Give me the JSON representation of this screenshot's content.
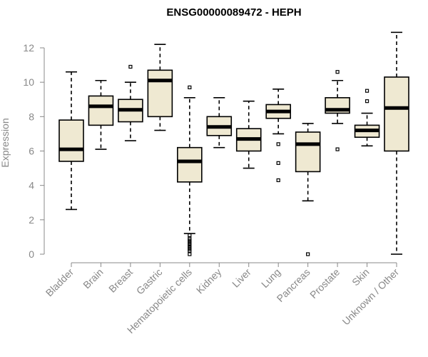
{
  "chart_data": {
    "type": "boxplot",
    "title": "ENSG00000089472 - HEPH",
    "xlabel": "",
    "ylabel": "Expression",
    "ylim": [
      0,
      12.5
    ],
    "yticks": [
      0,
      2,
      4,
      6,
      8,
      10,
      12
    ],
    "categories": [
      "Bladder",
      "Brain",
      "Breast",
      "Gastric",
      "Hematopoietic cells",
      "Kidney",
      "Liver",
      "Lung",
      "Pancreas",
      "Prostate",
      "Skin",
      "Unknown / Other"
    ],
    "boxes": [
      {
        "name": "Bladder",
        "whisker_low": 2.6,
        "q1": 5.4,
        "median": 6.1,
        "q3": 7.8,
        "whisker_high": 10.6,
        "outliers": []
      },
      {
        "name": "Brain",
        "whisker_low": 6.1,
        "q1": 7.5,
        "median": 8.6,
        "q3": 9.2,
        "whisker_high": 10.1,
        "outliers": []
      },
      {
        "name": "Breast",
        "whisker_low": 6.6,
        "q1": 7.7,
        "median": 8.4,
        "q3": 9.0,
        "whisker_high": 10.0,
        "outliers": [
          10.9
        ]
      },
      {
        "name": "Gastric",
        "whisker_low": 7.2,
        "q1": 8.0,
        "median": 10.1,
        "q3": 10.7,
        "whisker_high": 12.2,
        "outliers": []
      },
      {
        "name": "Hematopoietic cells",
        "whisker_low": 1.2,
        "q1": 4.2,
        "median": 5.4,
        "q3": 6.2,
        "whisker_high": 9.1,
        "outliers": [
          9.7,
          1.1,
          0.9,
          0.8,
          0.7,
          0.6,
          0.5,
          0.4,
          0.3,
          0.2,
          0.0
        ]
      },
      {
        "name": "Kidney",
        "whisker_low": 6.2,
        "q1": 6.9,
        "median": 7.4,
        "q3": 8.0,
        "whisker_high": 9.1,
        "outliers": []
      },
      {
        "name": "Liver",
        "whisker_low": 5.0,
        "q1": 6.0,
        "median": 6.7,
        "q3": 7.3,
        "whisker_high": 8.9,
        "outliers": []
      },
      {
        "name": "Lung",
        "whisker_low": 7.0,
        "q1": 7.9,
        "median": 8.3,
        "q3": 8.7,
        "whisker_high": 9.6,
        "outliers": [
          6.4,
          5.3,
          4.3
        ]
      },
      {
        "name": "Pancreas",
        "whisker_low": 3.1,
        "q1": 4.8,
        "median": 6.4,
        "q3": 7.1,
        "whisker_high": 7.6,
        "outliers": [
          0.0
        ]
      },
      {
        "name": "Prostate",
        "whisker_low": 7.6,
        "q1": 8.2,
        "median": 8.4,
        "q3": 9.1,
        "whisker_high": 10.1,
        "outliers": [
          10.6,
          6.1
        ]
      },
      {
        "name": "Skin",
        "whisker_low": 6.3,
        "q1": 6.8,
        "median": 7.2,
        "q3": 7.5,
        "whisker_high": 8.2,
        "outliers": [
          9.5,
          8.9
        ]
      },
      {
        "name": "Unknown / Other",
        "whisker_low": 0.0,
        "q1": 6.0,
        "median": 8.5,
        "q3": 10.3,
        "whisker_high": 12.9,
        "outliers": []
      }
    ],
    "grid": false,
    "legend": "none"
  },
  "colors": {
    "box_fill": "#efe9d2",
    "box_stroke": "#000000",
    "axis": "#888888"
  }
}
